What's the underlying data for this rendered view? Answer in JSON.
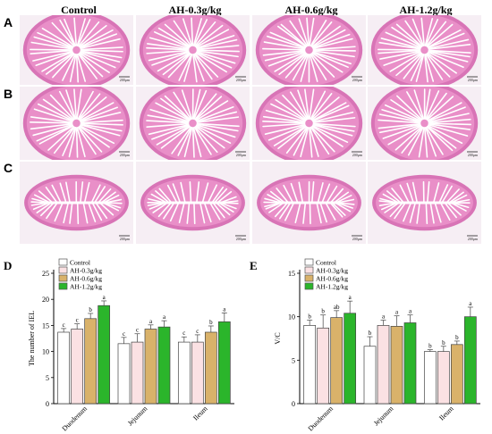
{
  "column_headers": [
    "Control",
    "AH-0.3g/kg",
    "AH-0.6g/kg",
    "AH-1.2g/kg"
  ],
  "row_letters": [
    "A",
    "B",
    "C"
  ],
  "scale_bar_label": "200μm",
  "colors": {
    "tissue_pink": "#e98fc8",
    "tissue_dark": "#d874b6",
    "lumen_white": "#ffffff",
    "background": "#f3eef2",
    "series_fill": [
      "#ffffff",
      "#fbe1e3",
      "#d9b26a",
      "#2bb52b"
    ]
  },
  "chart_data": [
    {
      "panel_letter": "D",
      "type": "bar",
      "categories": [
        "Duodenum",
        "Jejunum",
        "Ileum"
      ],
      "ylabel": "The number of IEL",
      "ylim": [
        0,
        25
      ],
      "yticks": [
        0,
        5,
        10,
        15,
        20,
        25
      ],
      "series": [
        {
          "name": "Control",
          "values": [
            13.7,
            11.5,
            11.8
          ],
          "errors": [
            0.7,
            1.2,
            1.0
          ],
          "labels": [
            "c",
            "c",
            "c"
          ]
        },
        {
          "name": "AH-0.3g/kg",
          "values": [
            14.3,
            11.8,
            11.8
          ],
          "errors": [
            1.0,
            1.6,
            1.4
          ],
          "labels": [
            "c",
            "c",
            "c"
          ]
        },
        {
          "name": "AH-0.6g/kg",
          "values": [
            16.3,
            14.3,
            13.7
          ],
          "errors": [
            1.0,
            0.8,
            1.2
          ],
          "labels": [
            "b",
            "a",
            "b"
          ]
        },
        {
          "name": "AH-1.2g/kg",
          "values": [
            18.8,
            14.7,
            15.7
          ],
          "errors": [
            0.9,
            1.2,
            1.7
          ],
          "labels": [
            "a",
            "a",
            "a"
          ]
        }
      ]
    },
    {
      "panel_letter": "E",
      "type": "bar",
      "categories": [
        "Duodenum",
        "Jejunum",
        "Ileum"
      ],
      "ylabel": "V/C",
      "ylim": [
        0,
        15
      ],
      "yticks": [
        0,
        5,
        10,
        15
      ],
      "series": [
        {
          "name": "Control",
          "values": [
            9.0,
            6.6,
            6.0
          ],
          "errors": [
            0.6,
            1.1,
            0.2
          ],
          "labels": [
            "b",
            "b",
            "b"
          ]
        },
        {
          "name": "AH-0.3g/kg",
          "values": [
            8.7,
            9.0,
            6.0
          ],
          "errors": [
            1.5,
            0.6,
            0.6
          ],
          "labels": [
            "b",
            "a",
            "b"
          ]
        },
        {
          "name": "AH-0.6g/kg",
          "values": [
            9.9,
            8.9,
            6.8
          ],
          "errors": [
            0.8,
            1.2,
            0.4
          ],
          "labels": [
            "ab",
            "a",
            "b"
          ]
        },
        {
          "name": "AH-1.2g/kg",
          "values": [
            10.4,
            9.3,
            10.0
          ],
          "errors": [
            1.4,
            0.9,
            1.1
          ],
          "labels": [
            "a",
            "a",
            "a"
          ]
        }
      ]
    }
  ]
}
